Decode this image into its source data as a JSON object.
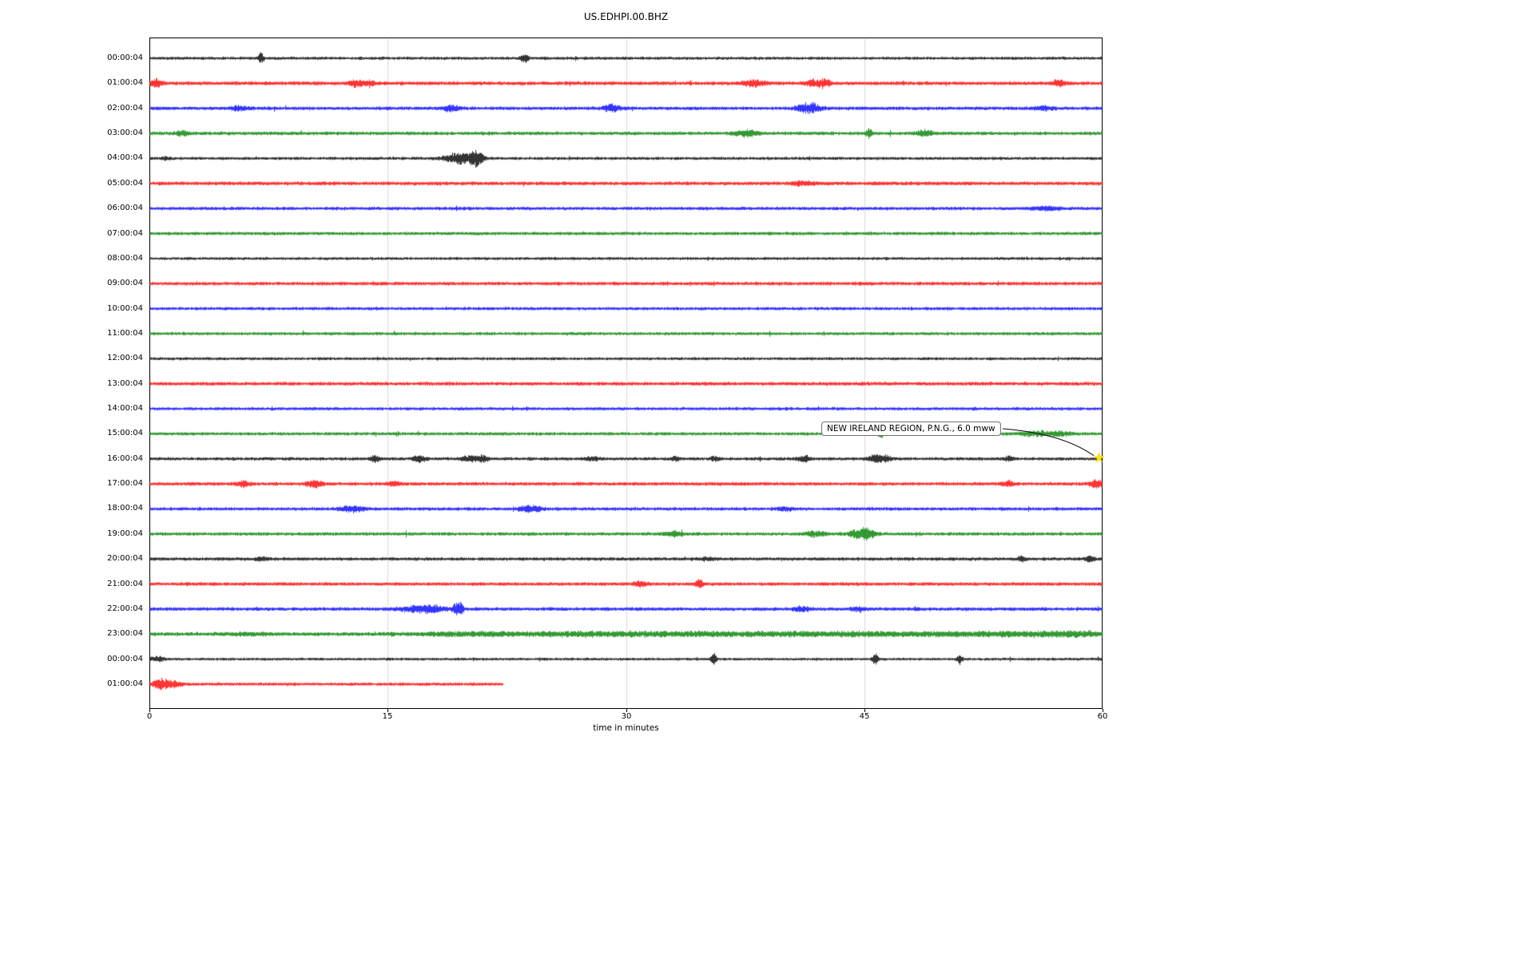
{
  "chart_data": {
    "type": "line",
    "title": "US.EDHPI.00.BHZ",
    "xlabel": "time in minutes",
    "x_range_minutes": [
      0,
      60
    ],
    "x_ticks": [
      0,
      15,
      30,
      45,
      60
    ],
    "grid_minutes": [
      15,
      30,
      45
    ],
    "grid_color": "#d9d9d9",
    "annotation": {
      "text": "NEW IRELAND REGION, P.N.G., 6.0 mww",
      "marker": "star",
      "marker_color": "#ffe200",
      "target_row_index": 16,
      "target_minute": 59.8
    },
    "rows": [
      {
        "label": "00:00:04",
        "color": "#000000",
        "amp": 2.4,
        "events": [
          [
            7.0,
            0.12,
            7
          ],
          [
            23.6,
            0.18,
            5
          ]
        ]
      },
      {
        "label": "01:00:04",
        "color": "#ff0000",
        "amp": 3.0,
        "events": [
          [
            0.4,
            0.3,
            5
          ],
          [
            13.0,
            0.3,
            5
          ],
          [
            13.9,
            0.2,
            4
          ],
          [
            38.0,
            0.5,
            4
          ],
          [
            41.9,
            0.4,
            5
          ],
          [
            42.6,
            0.2,
            4
          ],
          [
            57.2,
            0.3,
            4
          ]
        ]
      },
      {
        "label": "02:00:04",
        "color": "#0000ff",
        "amp": 2.8,
        "events": [
          [
            5.6,
            0.4,
            3
          ],
          [
            19.0,
            0.35,
            4
          ],
          [
            29.1,
            0.35,
            5
          ],
          [
            41.5,
            0.5,
            7
          ],
          [
            56.3,
            0.4,
            3
          ]
        ]
      },
      {
        "label": "03:00:04",
        "color": "#008000",
        "amp": 2.8,
        "events": [
          [
            2.1,
            0.3,
            3
          ],
          [
            37.6,
            0.5,
            4
          ],
          [
            45.3,
            0.12,
            8
          ],
          [
            48.8,
            0.35,
            4
          ]
        ]
      },
      {
        "label": "04:00:04",
        "color": "#000000",
        "amp": 2.4,
        "events": [
          [
            1.0,
            0.2,
            2
          ],
          [
            19.6,
            0.7,
            8
          ],
          [
            20.6,
            0.25,
            9
          ]
        ]
      },
      {
        "label": "05:00:04",
        "color": "#ff0000",
        "amp": 3.0,
        "events": [
          [
            41.0,
            0.5,
            2
          ]
        ]
      },
      {
        "label": "06:00:04",
        "color": "#0000ff",
        "amp": 2.7,
        "events": [
          [
            56.4,
            0.6,
            2.5
          ]
        ]
      },
      {
        "label": "07:00:04",
        "color": "#008000",
        "amp": 2.6,
        "events": []
      },
      {
        "label": "08:00:04",
        "color": "#000000",
        "amp": 2.3,
        "events": []
      },
      {
        "label": "09:00:04",
        "color": "#ff0000",
        "amp": 2.8,
        "events": []
      },
      {
        "label": "10:00:04",
        "color": "#0000ff",
        "amp": 2.5,
        "events": []
      },
      {
        "label": "11:00:04",
        "color": "#008000",
        "amp": 2.5,
        "events": []
      },
      {
        "label": "12:00:04",
        "color": "#000000",
        "amp": 2.3,
        "events": []
      },
      {
        "label": "13:00:04",
        "color": "#ff0000",
        "amp": 2.9,
        "events": []
      },
      {
        "label": "14:00:04",
        "color": "#0000ff",
        "amp": 2.5,
        "events": []
      },
      {
        "label": "15:00:04",
        "color": "#008000",
        "amp": 2.6,
        "events": [
          [
            46.0,
            0.15,
            6
          ],
          [
            55.8,
            0.8,
            3
          ],
          [
            57.4,
            0.4,
            3
          ]
        ]
      },
      {
        "label": "16:00:04",
        "color": "#000000",
        "amp": 2.6,
        "events": [
          [
            14.2,
            0.2,
            5
          ],
          [
            17.0,
            0.3,
            4
          ],
          [
            20.2,
            0.4,
            4
          ],
          [
            21.0,
            0.2,
            5
          ],
          [
            27.9,
            0.25,
            3
          ],
          [
            33.1,
            0.15,
            4
          ],
          [
            35.6,
            0.2,
            3
          ],
          [
            41.2,
            0.3,
            4
          ],
          [
            45.7,
            0.3,
            6
          ],
          [
            46.4,
            0.2,
            4
          ],
          [
            54.1,
            0.2,
            3
          ]
        ]
      },
      {
        "label": "17:00:04",
        "color": "#ff0000",
        "amp": 2.8,
        "events": [
          [
            5.9,
            0.3,
            4
          ],
          [
            10.4,
            0.35,
            5
          ],
          [
            15.4,
            0.25,
            3
          ],
          [
            54.0,
            0.3,
            3
          ],
          [
            59.6,
            0.3,
            5
          ]
        ]
      },
      {
        "label": "18:00:04",
        "color": "#0000ff",
        "amp": 2.7,
        "events": [
          [
            12.8,
            0.5,
            4
          ],
          [
            24.0,
            0.5,
            4
          ],
          [
            40.1,
            0.3,
            2.5
          ]
        ]
      },
      {
        "label": "19:00:04",
        "color": "#008000",
        "amp": 2.7,
        "events": [
          [
            33.0,
            0.4,
            3
          ],
          [
            41.9,
            0.4,
            4
          ],
          [
            44.9,
            0.5,
            9
          ]
        ]
      },
      {
        "label": "20:00:04",
        "color": "#000000",
        "amp": 2.7,
        "events": [
          [
            7.0,
            0.3,
            2
          ],
          [
            35.1,
            0.3,
            2
          ],
          [
            54.9,
            0.2,
            3
          ],
          [
            59.2,
            0.2,
            4
          ]
        ]
      },
      {
        "label": "21:00:04",
        "color": "#ff0000",
        "amp": 2.8,
        "events": [
          [
            30.9,
            0.3,
            3
          ],
          [
            34.6,
            0.2,
            5
          ]
        ]
      },
      {
        "label": "22:00:04",
        "color": "#0000ff",
        "amp": 2.8,
        "events": [
          [
            17.3,
            1.0,
            5
          ],
          [
            19.3,
            0.15,
            8
          ],
          [
            19.6,
            0.1,
            7
          ],
          [
            41.0,
            0.4,
            3
          ],
          [
            44.6,
            0.3,
            3
          ]
        ]
      },
      {
        "label": "23:00:04",
        "color": "#008000",
        "amp": 3.0,
        "events": [
          [
            6.0,
            1.0,
            1.5
          ],
          [
            20.0,
            2.5,
            2
          ],
          [
            27.0,
            3.0,
            2
          ],
          [
            35.0,
            4.0,
            2
          ],
          [
            44.0,
            4.0,
            2
          ],
          [
            53.0,
            4.0,
            2
          ],
          [
            58.0,
            2.0,
            2
          ]
        ]
      },
      {
        "label": "00:00:04",
        "color": "#000000",
        "amp": 2.2,
        "events": [
          [
            0.5,
            0.3,
            3
          ],
          [
            35.5,
            0.12,
            8
          ],
          [
            45.7,
            0.12,
            8
          ],
          [
            51.0,
            0.12,
            6
          ]
        ]
      },
      {
        "label": "01:00:04",
        "color": "#ff0000",
        "amp": 2.6,
        "end": 22.3,
        "events": [
          [
            0.7,
            0.35,
            8
          ],
          [
            1.6,
            0.3,
            4
          ]
        ]
      }
    ]
  }
}
